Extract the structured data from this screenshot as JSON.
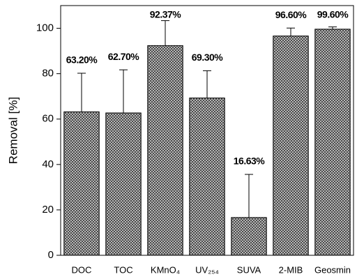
{
  "chart_data": {
    "type": "bar",
    "y_label": "Removal [%]",
    "categories": [
      "DOC",
      "TOC",
      "KMnO₄",
      "UV₂₅₄",
      "SUVA",
      "2-MIB",
      "Geosmin"
    ],
    "values": [
      63.2,
      62.7,
      92.37,
      69.3,
      16.63,
      96.6,
      99.6
    ],
    "value_labels": [
      "63.20%",
      "62.70%",
      "92.37%",
      "69.30%",
      "16.63%",
      "96.60%",
      "99.60%"
    ],
    "errors": [
      17,
      19,
      11,
      12,
      19,
      3.5,
      1
    ],
    "color": "#6e6e6e",
    "ylim": [
      0,
      110
    ],
    "yticks": [
      0,
      20,
      40,
      60,
      80,
      100
    ],
    "grid": false
  }
}
